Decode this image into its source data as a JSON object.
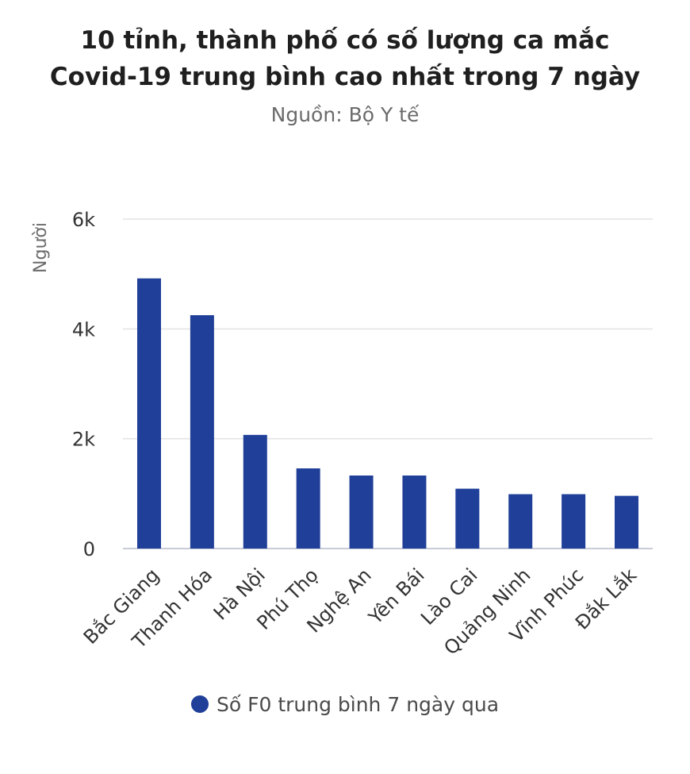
{
  "header": {
    "title_line1": "10 tỉnh, thành phố có số lượng ca mắc",
    "title_line2": "Covid-19 trung bình cao nhất trong 7 ngày",
    "subtitle": "Nguồn: Bộ Y tế"
  },
  "chart_data": {
    "type": "bar",
    "title": "10 tỉnh, thành phố có số lượng ca mắc Covid-19 trung bình cao nhất trong 7 ngày",
    "subtitle": "Nguồn: Bộ Y tế",
    "xlabel": "",
    "ylabel": "Người",
    "ylim": [
      0,
      6000
    ],
    "yticks": [
      0,
      2000,
      4000,
      6000
    ],
    "ytick_labels": [
      "0",
      "2k",
      "4k",
      "6k"
    ],
    "grid": true,
    "legend_position": "bottom",
    "categories": [
      "Bắc Giang",
      "Thanh Hóa",
      "Hà Nội",
      "Phú Thọ",
      "Nghệ An",
      "Yên Bái",
      "Lào Cai",
      "Quảng Ninh",
      "Vĩnh Phúc",
      "Đắk Lắk"
    ],
    "series": [
      {
        "name": "Số F0 trung bình 7 ngày qua",
        "color": "#1f3f99",
        "values": [
          4920,
          4250,
          2070,
          1460,
          1330,
          1330,
          1090,
          990,
          990,
          960
        ]
      }
    ]
  }
}
